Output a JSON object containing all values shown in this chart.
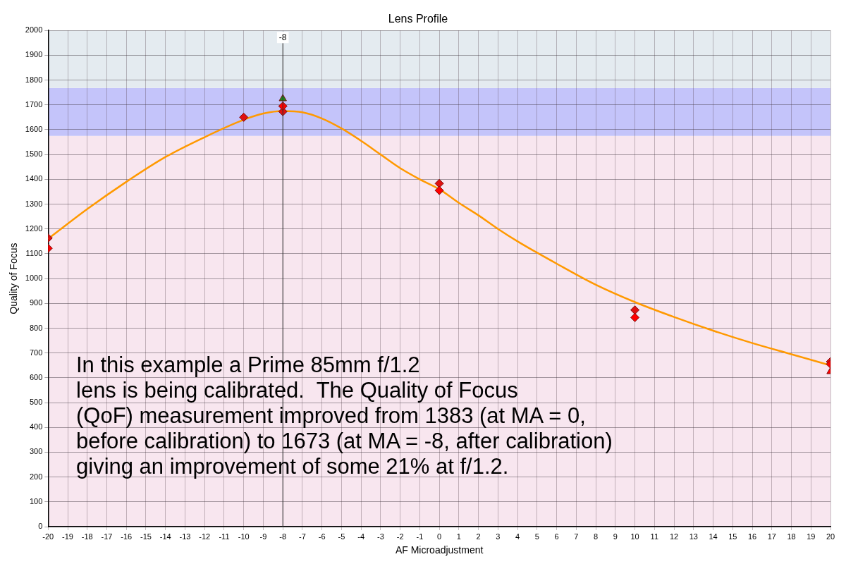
{
  "chart_data": {
    "type": "scatter",
    "title": "Lens Profile",
    "xlabel": "AF Microadjustment",
    "ylabel": "Quality of Focus",
    "xlim": [
      -20,
      20
    ],
    "xticks": [
      -20,
      -19,
      -18,
      -17,
      -16,
      -15,
      -14,
      -13,
      -12,
      -11,
      -10,
      -9,
      -8,
      -7,
      -6,
      -5,
      -4,
      -3,
      -2,
      -1,
      0,
      1,
      2,
      3,
      4,
      5,
      6,
      7,
      8,
      9,
      10,
      11,
      12,
      13,
      14,
      15,
      16,
      17,
      18,
      19,
      20
    ],
    "ylim": [
      0,
      2000
    ],
    "yticks": [
      0,
      100,
      200,
      300,
      400,
      500,
      600,
      700,
      800,
      900,
      1000,
      1100,
      1200,
      1300,
      1400,
      1500,
      1600,
      1700,
      1800,
      1900,
      2000
    ],
    "grid": true,
    "legend": false,
    "series": [
      {
        "type": "line",
        "color": "#ff9900",
        "marker": "none",
        "line_style": "solid",
        "x": [
          -20,
          -18,
          -16,
          -14,
          -12,
          -10,
          -9,
          -8,
          -7,
          -6,
          -5,
          -4,
          -3,
          -2,
          -1,
          0,
          1,
          2,
          3,
          4,
          6,
          8,
          10,
          12,
          14,
          16,
          18,
          20
        ],
        "values": [
          1160,
          1280,
          1390,
          1490,
          1570,
          1640,
          1665,
          1675,
          1670,
          1645,
          1605,
          1555,
          1500,
          1445,
          1400,
          1360,
          1305,
          1255,
          1200,
          1150,
          1060,
          975,
          905,
          845,
          790,
          740,
          695,
          650
        ]
      },
      {
        "color": "#ff0000",
        "marker": "diamond",
        "x": [
          -20,
          -10,
          -8,
          0,
          10,
          20
        ],
        "values": [
          1122,
          null,
          1695,
          1355,
          843,
          655
        ]
      },
      {
        "color": "#e01010",
        "marker": "diamond",
        "x": [
          -20,
          -10,
          -8,
          0,
          10,
          20
        ],
        "values": [
          1163,
          1650,
          1673,
          1383,
          873,
          665
        ]
      },
      {
        "color": "#1a8a1a",
        "marker": "triangle",
        "x": [
          -8
        ],
        "values": [
          1725
        ]
      },
      {
        "color": "#ff0000",
        "marker": "triangle",
        "x": [
          20
        ],
        "values": [
          625
        ]
      }
    ],
    "bands": [
      {
        "axis": "y",
        "from": 0,
        "to": 1575,
        "color": "#f8e6ef"
      },
      {
        "axis": "y",
        "from": 1575,
        "to": 1768,
        "color": "#c4c4fa"
      },
      {
        "axis": "y",
        "from": 1768,
        "to": 2000,
        "color": "#e4ebf0"
      }
    ],
    "ref_lines": [
      {
        "axis": "x",
        "value": -8,
        "label": "-8",
        "color": "#333333"
      }
    ],
    "annotations": [
      "In this example a Prime 85mm f/1.2\nlens is being calibrated.  The Quality of Focus\n(QoF) measurement improved from 1383 (at MA = 0,\nbefore calibration) to 1673 (at MA = -8, after calibration)\ngiving an improvement of some 21% at f/1.2."
    ]
  }
}
